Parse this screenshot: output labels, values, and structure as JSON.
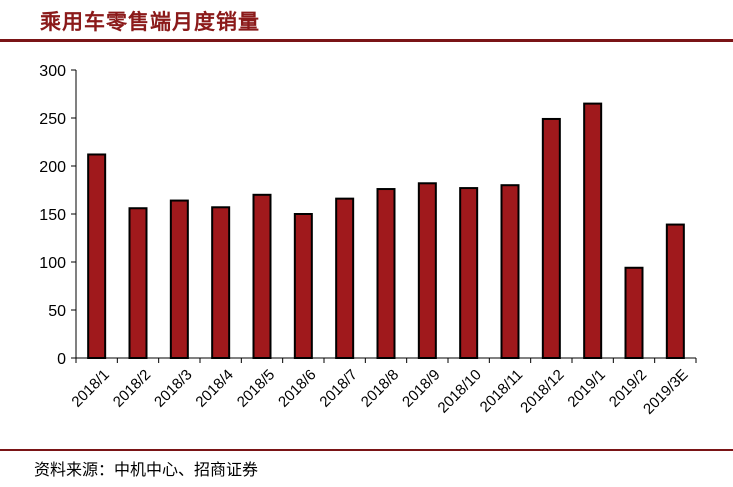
{
  "header": {
    "title": "乘用车零售端月度销量",
    "rule_color": "#7a1416"
  },
  "footer": {
    "source": "资料来源：中机中心、招商证券"
  },
  "chart_data": {
    "type": "bar",
    "title": "乘用车零售端月度销量",
    "xlabel": "",
    "ylabel": "",
    "categories": [
      "2018/1",
      "2018/2",
      "2018/3",
      "2018/4",
      "2018/5",
      "2018/6",
      "2018/7",
      "2018/8",
      "2018/9",
      "2018/10",
      "2018/11",
      "2018/12",
      "2019/1",
      "2019/2",
      "2019/3E"
    ],
    "values": [
      212,
      156,
      164,
      157,
      170,
      150,
      166,
      176,
      182,
      177,
      180,
      249,
      265,
      94,
      139
    ],
    "ylim": [
      0,
      300
    ],
    "yticks": [
      0,
      50,
      100,
      150,
      200,
      250,
      300
    ],
    "bar_color": "#a0191c",
    "bar_edge_color": "#000000",
    "grid": false,
    "legend": "none"
  }
}
